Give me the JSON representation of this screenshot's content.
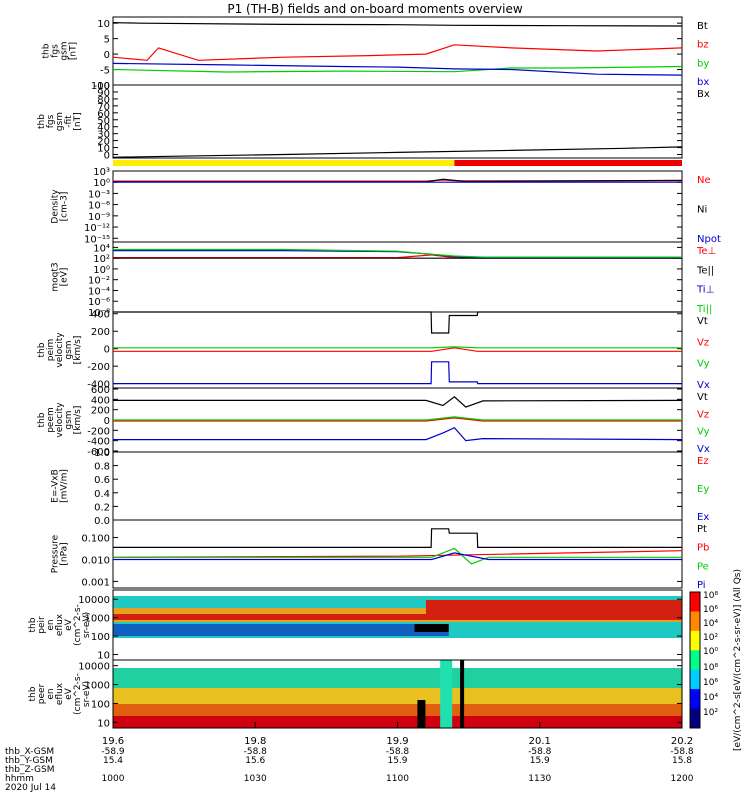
{
  "title": "P1 (TH-B) fields and on-board moments overview",
  "chart_data": [
    {
      "type": "line",
      "ylabel": [
        "thb",
        "fgs",
        "gsm",
        "[nT]"
      ],
      "ylim": [
        -10,
        12
      ],
      "yticks": [
        "10",
        "5",
        "0",
        "-5",
        "-10"
      ],
      "yticks_val": [
        10,
        5,
        0,
        -5,
        -10
      ],
      "series": [
        {
          "name": "Bt",
          "color": "#000000",
          "x": [
            0,
            0.05,
            0.3,
            0.5,
            0.6,
            0.8,
            1
          ],
          "values": [
            10.2,
            10,
            9.6,
            9.5,
            9.3,
            9.2,
            9.1
          ]
        },
        {
          "name": "bz",
          "color": "#ff0000",
          "x": [
            0,
            0.06,
            0.08,
            0.15,
            0.3,
            0.45,
            0.55,
            0.6,
            0.7,
            0.85,
            1
          ],
          "values": [
            -1,
            -2,
            2,
            -2,
            -1,
            -0.5,
            0,
            3,
            2,
            1,
            2
          ]
        },
        {
          "name": "by",
          "color": "#00cc00",
          "x": [
            0,
            0.2,
            0.4,
            0.6,
            0.7,
            0.8,
            1
          ],
          "values": [
            -5,
            -5.8,
            -5.5,
            -5.7,
            -4.5,
            -4.5,
            -4
          ]
        },
        {
          "name": "bx",
          "color": "#0000cc",
          "x": [
            0,
            0.2,
            0.4,
            0.5,
            0.6,
            0.7,
            0.85,
            1
          ],
          "values": [
            -3,
            -3.5,
            -4,
            -4.2,
            -4.8,
            -5,
            -6.5,
            -6.8
          ]
        }
      ]
    },
    {
      "type": "line",
      "ylabel": [
        "thb",
        "fgs",
        "gsm",
        "-fit",
        "[nT]"
      ],
      "ylim": [
        -5,
        100
      ],
      "yticks": [
        "100",
        "90",
        "80",
        "70",
        "60",
        "50",
        "40",
        "30",
        "20",
        "10",
        "0"
      ],
      "yticks_val": [
        100,
        90,
        80,
        70,
        60,
        50,
        40,
        30,
        20,
        10,
        0
      ],
      "series": [
        {
          "name": "Bx",
          "color": "#000000",
          "x": [
            0,
            0.1,
            0.3,
            0.5,
            0.7,
            0.9,
            1
          ],
          "values": [
            -4,
            -2.5,
            0,
            3,
            6,
            9,
            11
          ]
        }
      ]
    },
    {
      "type": "line",
      "ylabel": [
        "Density",
        "[cm-3]"
      ],
      "log": true,
      "ylim": [
        -16,
        3
      ],
      "yticks": [
        "10³",
        "10⁰",
        "10⁻³",
        "10⁻⁶",
        "10⁻⁹",
        "10⁻¹²",
        "10⁻¹⁵"
      ],
      "yticks_val": [
        3,
        0,
        -3,
        -6,
        -9,
        -12,
        -15
      ],
      "series": [
        {
          "name": "Ne",
          "color": "#ff0000",
          "x": [
            0,
            0.55,
            0.58,
            0.6,
            0.65,
            1
          ],
          "values": [
            0.3,
            0.3,
            0.6,
            0.4,
            0.35,
            0.4
          ]
        },
        {
          "name": "Ni",
          "color": "#000000",
          "x": [
            0,
            0.55,
            0.58,
            0.62,
            1
          ],
          "values": [
            0.1,
            0.1,
            0.8,
            0.2,
            0.5
          ]
        },
        {
          "name": "Npot",
          "color": "#0000cc",
          "x": [
            0,
            1
          ],
          "values": [
            0,
            0
          ]
        }
      ]
    },
    {
      "type": "line",
      "ylabel": [
        "moqt3",
        "[eV]"
      ],
      "log": true,
      "ylim": [
        -8,
        5
      ],
      "yticks": [
        "10⁴",
        "10²",
        "10⁰",
        "10⁻²",
        "10⁻⁴",
        "10⁻⁶",
        "10⁻⁸"
      ],
      "yticks_val": [
        4,
        2,
        0,
        -2,
        -4,
        -6,
        -8
      ],
      "series": [
        {
          "name": "Te⊥",
          "color": "#ff0000",
          "x": [
            0,
            0.5,
            0.56,
            0.6,
            0.65,
            1
          ],
          "values": [
            2.1,
            2.1,
            2.6,
            2.1,
            2.0,
            2.0
          ]
        },
        {
          "name": "Te||",
          "color": "#000000",
          "x": [
            0,
            1
          ],
          "values": [
            2.0,
            2.0
          ]
        },
        {
          "name": "Ti⊥",
          "color": "#0000cc",
          "x": [
            0,
            0.3,
            0.5,
            0.55,
            0.6,
            0.65,
            1
          ],
          "values": [
            3.4,
            3.4,
            3.2,
            2.8,
            2.3,
            2.1,
            2.1
          ]
        },
        {
          "name": "Ti||",
          "color": "#00cc00",
          "x": [
            0,
            0.3,
            0.5,
            0.55,
            0.6,
            0.65,
            1
          ],
          "values": [
            3.6,
            3.6,
            3.3,
            2.8,
            2.4,
            2.2,
            2.2
          ]
        }
      ]
    },
    {
      "type": "line",
      "ylabel": [
        "thb",
        "peim",
        "velocity",
        "gsm",
        "[km/s]"
      ],
      "ylim": [
        -450,
        420
      ],
      "yticks": [
        "400",
        "200",
        "0",
        "-200",
        "-400"
      ],
      "yticks_val": [
        400,
        200,
        0,
        -200,
        -400
      ],
      "series": [
        {
          "name": "Vt",
          "color": "#000000",
          "x": [
            0,
            0.559,
            0.56,
            0.59,
            0.591,
            0.64,
            0.641,
            1
          ],
          "values": [
            420,
            420,
            180,
            180,
            380,
            380,
            420,
            420
          ]
        },
        {
          "name": "Vz",
          "color": "#ff0000",
          "x": [
            0,
            0.56,
            0.6,
            0.64,
            1
          ],
          "values": [
            -30,
            -30,
            10,
            -30,
            -30
          ]
        },
        {
          "name": "Vy",
          "color": "#00cc00",
          "x": [
            0,
            0.56,
            0.6,
            0.64,
            1
          ],
          "values": [
            10,
            10,
            20,
            10,
            10
          ]
        },
        {
          "name": "Vx",
          "color": "#0000cc",
          "x": [
            0,
            0.559,
            0.56,
            0.59,
            0.591,
            0.64,
            0.641,
            1
          ],
          "values": [
            -400,
            -400,
            -150,
            -150,
            -380,
            -380,
            -400,
            -400
          ]
        }
      ]
    },
    {
      "type": "line",
      "ylabel": [
        "thb",
        "peem",
        "velocity",
        "gsm",
        "[km/s]"
      ],
      "ylim": [
        -620,
        620
      ],
      "yticks": [
        "600",
        "400",
        "200",
        "0",
        "-200",
        "-400",
        "-600"
      ],
      "yticks_val": [
        600,
        400,
        200,
        0,
        -200,
        -400,
        -600
      ],
      "series": [
        {
          "name": "Vt",
          "color": "#000000",
          "x": [
            0,
            0.55,
            0.58,
            0.6,
            0.62,
            0.65,
            1
          ],
          "values": [
            380,
            380,
            280,
            450,
            250,
            370,
            380
          ]
        },
        {
          "name": "Vz",
          "color": "#ff0000",
          "x": [
            0,
            0.55,
            0.6,
            0.65,
            1
          ],
          "values": [
            -20,
            -20,
            40,
            -20,
            -20
          ]
        },
        {
          "name": "Vy",
          "color": "#00cc00",
          "x": [
            0,
            0.55,
            0.6,
            0.65,
            1
          ],
          "values": [
            0,
            0,
            60,
            0,
            0
          ]
        },
        {
          "name": "Vx",
          "color": "#0000cc",
          "x": [
            0,
            0.55,
            0.58,
            0.6,
            0.62,
            0.65,
            1
          ],
          "values": [
            -380,
            -380,
            -250,
            -150,
            -400,
            -360,
            -380
          ]
        }
      ]
    },
    {
      "type": "line",
      "ylabel": [
        "E=-VxB",
        "[mV/m]"
      ],
      "ylim": [
        0,
        1
      ],
      "yticks": [
        "1.0",
        "0.8",
        "0.6",
        "0.4",
        "0.2",
        "0.0"
      ],
      "yticks_val": [
        1.0,
        0.8,
        0.6,
        0.4,
        0.2,
        0.0
      ],
      "series": [
        {
          "name": "Ez",
          "color": "#ff0000",
          "x": [],
          "values": []
        },
        {
          "name": "Ey",
          "color": "#00cc00",
          "x": [],
          "values": []
        },
        {
          "name": "Ex",
          "color": "#0000cc",
          "x": [],
          "values": []
        }
      ]
    },
    {
      "type": "line",
      "ylabel": [
        "Pressure",
        "[nPa]"
      ],
      "log": true,
      "ylim": [
        -3.3,
        -0.2
      ],
      "yticks": [
        "0.100",
        "0.010",
        "0.001"
      ],
      "yticks_val": [
        -1,
        -2,
        -3
      ],
      "series": [
        {
          "name": "Pt",
          "color": "#000000",
          "x": [
            0,
            0.559,
            0.56,
            0.59,
            0.591,
            0.64,
            0.641,
            1
          ],
          "values": [
            -1.45,
            -1.45,
            -0.6,
            -0.6,
            -0.8,
            -0.8,
            -1.45,
            -1.45
          ]
        },
        {
          "name": "Pb",
          "color": "#ff0000",
          "x": [
            0,
            0.5,
            0.7,
            1
          ],
          "values": [
            -1.9,
            -1.85,
            -1.75,
            -1.6
          ]
        },
        {
          "name": "Pe",
          "color": "#00cc00",
          "x": [
            0,
            0.56,
            0.6,
            0.63,
            0.66,
            1
          ],
          "values": [
            -1.9,
            -1.9,
            -1.5,
            -2.2,
            -1.9,
            -1.9
          ]
        },
        {
          "name": "Pi",
          "color": "#0000cc",
          "x": [
            0,
            0.56,
            0.6,
            0.66,
            1
          ],
          "values": [
            -2.0,
            -2.0,
            -1.7,
            -2.0,
            -2.0
          ]
        }
      ]
    },
    {
      "type": "heatmap",
      "ylabel": [
        "thb",
        "peir",
        "en",
        "eflux",
        "eV",
        "(cm^2-s-",
        "sr-eV)"
      ],
      "log": true,
      "ylim": [
        0.7,
        4.5
      ],
      "yticks": [
        "10000",
        "1000",
        "100",
        "10"
      ],
      "yticks_val": [
        4,
        3,
        2,
        1
      ]
    },
    {
      "type": "heatmap",
      "ylabel": [
        "thb",
        "peer",
        "en",
        "eflux",
        "eV",
        "(cm^2-s-",
        "sr-eV)"
      ],
      "log": true,
      "ylim": [
        0.7,
        4.3
      ],
      "yticks": [
        "10000",
        "1000",
        "100",
        "10"
      ],
      "yticks_val": [
        4,
        3,
        2,
        1
      ]
    }
  ],
  "colorbar": {
    "label": "[eV/(cm^2-s[eV/(cm^2-s-sr-eV)] (All Qs)",
    "upper_ticks": [
      "10⁸",
      "10⁶",
      "10⁴",
      "10²",
      "10⁰"
    ],
    "lower_ticks": [
      "10⁸",
      "10⁶",
      "10⁴",
      "10²"
    ]
  },
  "footer": {
    "rows": [
      {
        "label": "thb_X-GSM",
        "values": [
          "-58.9",
          "-58.8",
          "-58.8",
          "-58.8",
          "-58.8"
        ]
      },
      {
        "label": "thb_Y-GSM",
        "values": [
          "15.4",
          "15.6",
          "15.9",
          "15.9",
          "15.8"
        ]
      },
      {
        "label": "thb_Z-GSM",
        "values": [
          "",
          "",
          "",
          "",
          ""
        ]
      },
      {
        "label": "hhmm",
        "values": [
          "1000",
          "1030",
          "1100",
          "1130",
          "1200"
        ]
      }
    ],
    "top_values": [
      "19.6",
      "19.8",
      "19.9",
      "20.1",
      "20.2"
    ],
    "date": "2020 Jul 14"
  }
}
